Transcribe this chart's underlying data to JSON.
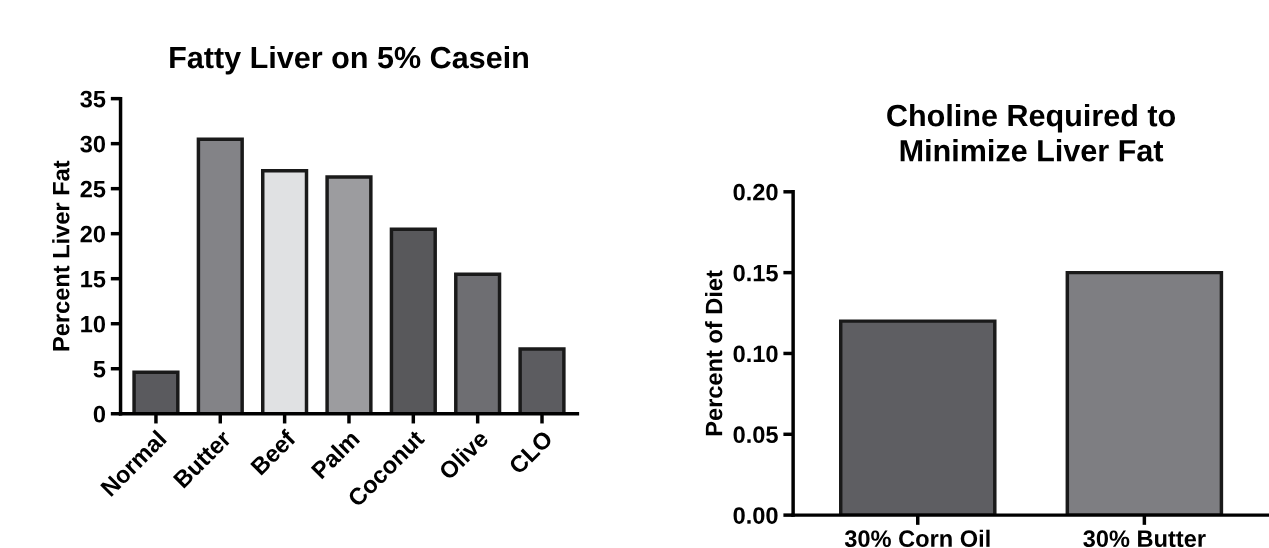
{
  "chart_data": [
    {
      "type": "bar",
      "title": "Fatty Liver on 5% Casein",
      "ylabel": "Percent Liver Fat",
      "categories": [
        "Normal",
        "Butter",
        "Beef",
        "Palm",
        "Coconut",
        "Olive",
        "CLO"
      ],
      "values": [
        4.6,
        30.5,
        27,
        26.3,
        20.5,
        15.5,
        7.2
      ],
      "colors": [
        "#5a5a5e",
        "#838387",
        "#e0e1e3",
        "#9c9c9f",
        "#58585b",
        "#6e6e72",
        "#5c5c60"
      ],
      "ylim": [
        0,
        35
      ],
      "yticks": [
        0,
        5,
        10,
        15,
        20,
        25,
        30,
        35
      ],
      "grid": false,
      "legend": false
    },
    {
      "type": "bar",
      "title": "Choline Required to\nMinimize Liver Fat",
      "ylabel": "Percent of Diet",
      "categories": [
        "30% Corn Oil",
        "30% Butter"
      ],
      "values": [
        0.12,
        0.15
      ],
      "colors": [
        "#5e5e62",
        "#7e7e82"
      ],
      "ylim": [
        0,
        0.2
      ],
      "yticks": [
        {
          "value": 0,
          "label": "0.00"
        },
        0.05,
        {
          "value": 0.1,
          "label": "0.10"
        },
        0.15,
        {
          "value": 0.2,
          "label": "0.20"
        }
      ],
      "grid": false,
      "legend": false
    }
  ]
}
